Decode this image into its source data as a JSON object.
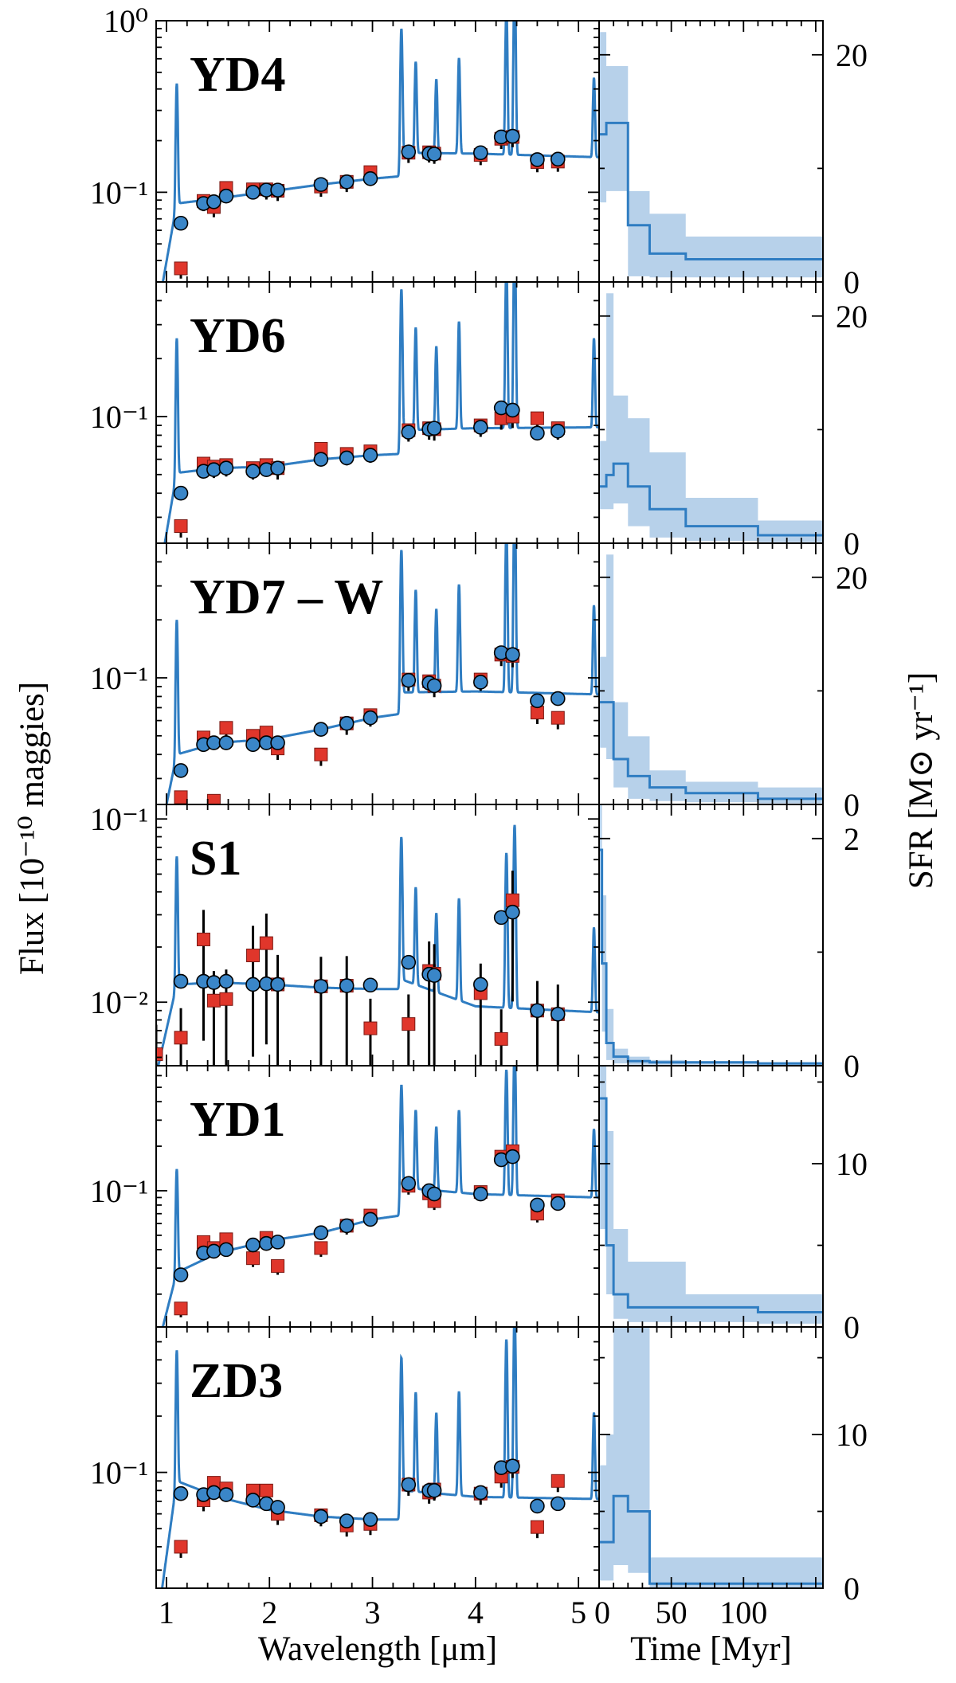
{
  "chart_data": {
    "type": "multi-panel: SED (line + scatter) and SFH (step line + shaded band)",
    "x_label_sed": "Wavelength [μm]",
    "x_label_sfh": "Time [Myr]",
    "y_label_sed": "Flux [10⁻¹⁰ maggies]",
    "y_label_sfh": "SFR [M⊙ yr⁻¹]",
    "sed_x_range": [
      0.9,
      5.2
    ],
    "sed_x_ticks": [
      "1",
      "2",
      "3",
      "4",
      "5"
    ],
    "sed_y_scale": "log",
    "sfh_x_range": [
      0,
      155
    ],
    "sfh_x_ticks": [
      "0",
      "50",
      "100"
    ],
    "colors": {
      "model": "#2f7dc2",
      "band": "#b7d1ea",
      "model_photometry": "#3a86c8",
      "observed": "#e0362b"
    },
    "panels": [
      {
        "name": "YD4",
        "sed_ylim": [
          0.03,
          1.0
        ],
        "sed_ytick_labels": [
          {
            "value": 1.0,
            "label": "10⁰"
          },
          {
            "value": 0.1,
            "label": "10⁻¹"
          }
        ],
        "continuum": [
          [
            0.9,
            0.018
          ],
          [
            1.1,
            0.086
          ],
          [
            1.5,
            0.092
          ],
          [
            2.0,
            0.101
          ],
          [
            2.5,
            0.111
          ],
          [
            3.0,
            0.12
          ],
          [
            3.27,
            0.124
          ],
          [
            3.3,
            0.17
          ],
          [
            4.0,
            0.168
          ],
          [
            5.2,
            0.16
          ]
        ],
        "model_photometry": {
          "x": [
            1.14,
            1.36,
            1.46,
            1.58,
            1.84,
            1.97,
            2.08,
            2.5,
            2.75,
            2.98,
            3.35,
            3.55,
            3.6,
            4.05,
            4.25,
            4.36,
            4.6,
            4.8
          ],
          "y": [
            0.066,
            0.086,
            0.088,
            0.095,
            0.1,
            0.103,
            0.103,
            0.111,
            0.115,
            0.12,
            0.172,
            0.168,
            0.167,
            0.17,
            0.21,
            0.212,
            0.155,
            0.156
          ]
        },
        "observed": {
          "x": [
            1.14,
            1.36,
            1.46,
            1.58,
            1.84,
            1.97,
            2.08,
            2.5,
            2.75,
            2.98,
            3.35,
            3.55,
            3.6,
            4.05,
            4.25,
            4.36,
            4.6,
            4.8
          ],
          "y": [
            0.036,
            0.089,
            0.082,
            0.106,
            0.104,
            0.104,
            0.102,
            0.108,
            0.115,
            0.131,
            0.17,
            0.171,
            0.168,
            0.165,
            0.205,
            0.21,
            0.15,
            0.151
          ]
        },
        "sfh_ylim": [
          0,
          23
        ],
        "sfh_yticks": [
          0,
          20
        ],
        "sfh_edges": [
          0,
          5,
          20,
          35,
          60,
          155
        ],
        "sfh_median": [
          13,
          14,
          5,
          2.5,
          2.0,
          1.0
        ],
        "sfh_low": [
          7,
          8,
          0.5,
          0.4,
          0.4,
          0.2
        ],
        "sfh_high": [
          22,
          19,
          8,
          6,
          4,
          3
        ]
      },
      {
        "name": "YD6",
        "sed_ylim": [
          0.022,
          0.5
        ],
        "sed_ytick_labels": [
          {
            "value": 0.1,
            "label": "10⁻¹"
          }
        ],
        "continuum": [
          [
            0.9,
            0.012
          ],
          [
            1.1,
            0.051
          ],
          [
            1.5,
            0.054
          ],
          [
            2.0,
            0.055
          ],
          [
            2.5,
            0.06
          ],
          [
            3.0,
            0.063
          ],
          [
            3.27,
            0.064
          ],
          [
            3.3,
            0.085
          ],
          [
            4.0,
            0.087
          ],
          [
            5.2,
            0.088
          ]
        ],
        "model_photometry": {
          "x": [
            1.14,
            1.36,
            1.46,
            1.58,
            1.84,
            1.97,
            2.08,
            2.5,
            2.75,
            2.98,
            3.35,
            3.55,
            3.6,
            4.05,
            4.25,
            4.36,
            4.6,
            4.8
          ],
          "y": [
            0.04,
            0.052,
            0.053,
            0.054,
            0.052,
            0.053,
            0.054,
            0.06,
            0.061,
            0.063,
            0.083,
            0.086,
            0.087,
            0.088,
            0.111,
            0.108,
            0.082,
            0.084
          ]
        },
        "observed": {
          "x": [
            1.14,
            1.36,
            1.46,
            1.58,
            1.84,
            1.97,
            2.08,
            2.5,
            2.75,
            2.98,
            3.35,
            3.55,
            3.6,
            4.05,
            4.25,
            4.36,
            4.6,
            4.8
          ],
          "y": [
            0.027,
            0.057,
            0.055,
            0.056,
            0.054,
            0.056,
            0.054,
            0.068,
            0.064,
            0.066,
            0.085,
            0.087,
            0.086,
            0.09,
            0.098,
            0.1,
            0.098,
            0.087
          ]
        },
        "sfh_ylim": [
          0,
          23
        ],
        "sfh_yticks": [
          0,
          20
        ],
        "sfh_edges": [
          0,
          5,
          10,
          20,
          35,
          60,
          110,
          155
        ],
        "sfh_median": [
          5,
          6,
          7,
          5,
          3,
          1.5,
          0.7,
          0.3
        ],
        "sfh_low": [
          3,
          3,
          3.5,
          1.5,
          0.5,
          0.2,
          0.1,
          0.0
        ],
        "sfh_high": [
          9,
          22,
          13,
          11,
          8,
          4,
          2,
          1
        ]
      },
      {
        "name": "YD7 – W",
        "sed_ylim": [
          0.022,
          0.5
        ],
        "sed_ytick_labels": [
          {
            "value": 0.1,
            "label": "10⁻¹"
          }
        ],
        "continuum": [
          [
            0.9,
            0.012
          ],
          [
            1.1,
            0.04
          ],
          [
            1.5,
            0.046
          ],
          [
            2.0,
            0.048
          ],
          [
            2.5,
            0.054
          ],
          [
            3.0,
            0.062
          ],
          [
            3.27,
            0.065
          ],
          [
            3.3,
            0.084
          ],
          [
            4.0,
            0.085
          ],
          [
            5.2,
            0.082
          ]
        ],
        "model_photometry": {
          "x": [
            1.14,
            1.36,
            1.46,
            1.58,
            1.84,
            1.97,
            2.08,
            2.5,
            2.75,
            2.98,
            3.35,
            3.55,
            3.6,
            4.05,
            4.25,
            4.36,
            4.6,
            4.8
          ],
          "y": [
            0.033,
            0.045,
            0.046,
            0.046,
            0.045,
            0.046,
            0.046,
            0.054,
            0.058,
            0.062,
            0.097,
            0.094,
            0.091,
            0.095,
            0.135,
            0.132,
            0.076,
            0.078
          ]
        },
        "observed": {
          "x": [
            1.14,
            1.36,
            1.46,
            1.58,
            1.84,
            1.97,
            2.08,
            2.5,
            2.75,
            2.98,
            3.35,
            3.55,
            3.6,
            4.05,
            4.25,
            4.36,
            4.6,
            4.8
          ],
          "y": [
            0.024,
            0.049,
            0.023,
            0.055,
            0.05,
            0.052,
            0.043,
            0.04,
            0.058,
            0.064,
            0.098,
            0.096,
            0.091,
            0.098,
            0.132,
            0.13,
            0.066,
            0.062
          ]
        },
        "sfh_ylim": [
          0,
          23
        ],
        "sfh_yticks": [
          0,
          20
        ],
        "sfh_edges": [
          0,
          5,
          10,
          20,
          35,
          60,
          110,
          155
        ],
        "sfh_median": [
          9,
          9,
          4,
          2.5,
          1.5,
          1.0,
          0.5,
          0.3
        ],
        "sfh_low": [
          5,
          4,
          1.5,
          0.5,
          0.3,
          0.2,
          0.1,
          0.0
        ],
        "sfh_high": [
          13,
          22,
          9,
          6,
          3,
          2,
          1.5,
          1
        ]
      },
      {
        "name": "S1",
        "sed_ylim": [
          0.0045,
          0.12
        ],
        "sed_ytick_labels": [
          {
            "value": 0.1,
            "label": "10⁻¹"
          },
          {
            "value": 0.01,
            "label": "10⁻²"
          }
        ],
        "continuum": [
          [
            0.9,
            0.004
          ],
          [
            1.1,
            0.0125
          ],
          [
            1.5,
            0.0128
          ],
          [
            2.0,
            0.0125
          ],
          [
            2.5,
            0.012
          ],
          [
            3.0,
            0.0118
          ],
          [
            3.27,
            0.0118
          ],
          [
            3.3,
            0.0132
          ],
          [
            4.0,
            0.0095
          ],
          [
            5.2,
            0.0088
          ]
        ],
        "model_photometry": {
          "x": [
            1.14,
            1.36,
            1.46,
            1.58,
            1.84,
            1.97,
            2.08,
            2.5,
            2.75,
            2.98,
            3.35,
            3.55,
            3.6,
            4.05,
            4.25,
            4.36,
            4.6,
            4.8
          ],
          "y": [
            0.013,
            0.013,
            0.0128,
            0.013,
            0.0125,
            0.0126,
            0.0125,
            0.0122,
            0.0123,
            0.0124,
            0.0165,
            0.0142,
            0.014,
            0.0125,
            0.029,
            0.031,
            0.009,
            0.0086
          ]
        },
        "observed": {
          "x": [
            0.9,
            1.14,
            1.36,
            1.46,
            1.58,
            1.84,
            1.97,
            2.08,
            2.5,
            2.75,
            2.98,
            3.35,
            3.55,
            3.6,
            4.05,
            4.25,
            4.36,
            4.6,
            4.8
          ],
          "y": [
            0.0052,
            0.0064,
            0.022,
            0.0102,
            0.0104,
            0.018,
            0.021,
            0.0125,
            0.0122,
            0.0123,
            0.0072,
            0.0076,
            0.0148,
            0.0143,
            0.0112,
            0.0063,
            0.036,
            0.009,
            0.0086
          ]
        },
        "sfh_ylim": [
          0,
          2.3
        ],
        "sfh_yticks": [
          0,
          2
        ],
        "sfh_edges": [
          0,
          2,
          5,
          10,
          20,
          35,
          60,
          110,
          155
        ],
        "sfh_median": [
          1.9,
          0.9,
          0.2,
          0.08,
          0.04,
          0.03,
          0.03,
          0.02,
          0.02
        ],
        "sfh_low": [
          1.0,
          0.3,
          0.05,
          0.02,
          0.01,
          0.01,
          0.01,
          0.0,
          0.0
        ],
        "sfh_high": [
          2.3,
          1.5,
          0.5,
          0.15,
          0.08,
          0.05,
          0.04,
          0.03,
          0.03
        ]
      },
      {
        "name": "YD1",
        "sed_ylim": [
          0.012,
          0.7
        ],
        "sed_ytick_labels": [
          {
            "value": 0.1,
            "label": "10⁻¹"
          }
        ],
        "continuum": [
          [
            0.9,
            0.008
          ],
          [
            1.1,
            0.028
          ],
          [
            1.5,
            0.038
          ],
          [
            2.0,
            0.046
          ],
          [
            2.5,
            0.052
          ],
          [
            3.0,
            0.064
          ],
          [
            3.27,
            0.068
          ],
          [
            3.3,
            0.105
          ],
          [
            4.0,
            0.095
          ],
          [
            5.2,
            0.09
          ]
        ],
        "model_photometry": {
          "x": [
            1.14,
            1.36,
            1.46,
            1.58,
            1.84,
            1.97,
            2.08,
            2.5,
            2.75,
            2.98,
            3.35,
            3.55,
            3.6,
            4.05,
            4.25,
            4.36,
            4.6,
            4.8
          ],
          "y": [
            0.027,
            0.038,
            0.039,
            0.04,
            0.043,
            0.044,
            0.045,
            0.052,
            0.058,
            0.064,
            0.112,
            0.1,
            0.095,
            0.095,
            0.162,
            0.17,
            0.08,
            0.082
          ]
        },
        "observed": {
          "x": [
            1.14,
            1.36,
            1.46,
            1.58,
            1.84,
            1.97,
            2.08,
            2.5,
            2.75,
            2.98,
            3.35,
            3.55,
            3.6,
            4.05,
            4.25,
            4.36,
            4.6,
            4.8
          ],
          "y": [
            0.016,
            0.045,
            0.041,
            0.047,
            0.035,
            0.048,
            0.031,
            0.041,
            0.058,
            0.068,
            0.108,
            0.096,
            0.085,
            0.098,
            0.17,
            0.185,
            0.07,
            0.086
          ]
        },
        "sfh_ylim": [
          0,
          16
        ],
        "sfh_yticks": [
          0,
          10
        ],
        "sfh_edges": [
          0,
          5,
          10,
          20,
          35,
          60,
          110,
          155
        ],
        "sfh_median": [
          14,
          5,
          2,
          1.2,
          1.2,
          1.2,
          0.9,
          0.8
        ],
        "sfh_low": [
          6,
          2,
          0.5,
          0.3,
          0.3,
          0.3,
          0.2,
          0.2
        ],
        "sfh_high": [
          16,
          12,
          6,
          4,
          4,
          2,
          2,
          2
        ]
      },
      {
        "name": "ZD3",
        "sed_ylim": [
          0.024,
          0.6
        ],
        "sed_ytick_labels": [
          {
            "value": 0.1,
            "label": "10⁻¹"
          }
        ],
        "continuum": [
          [
            0.9,
            0.014
          ],
          [
            1.1,
            0.09
          ],
          [
            1.5,
            0.074
          ],
          [
            2.0,
            0.063
          ],
          [
            2.5,
            0.058
          ],
          [
            3.0,
            0.056
          ],
          [
            3.27,
            0.056
          ],
          [
            3.3,
            0.08
          ],
          [
            4.0,
            0.074
          ],
          [
            5.2,
            0.072
          ]
        ],
        "model_photometry": {
          "x": [
            1.14,
            1.36,
            1.46,
            1.58,
            1.84,
            1.97,
            2.08,
            2.5,
            2.75,
            2.98,
            3.35,
            3.55,
            3.6,
            4.05,
            4.25,
            4.36,
            4.6,
            4.8
          ],
          "y": [
            0.077,
            0.076,
            0.078,
            0.076,
            0.071,
            0.068,
            0.065,
            0.058,
            0.055,
            0.056,
            0.086,
            0.08,
            0.08,
            0.078,
            0.106,
            0.108,
            0.066,
            0.068
          ]
        },
        "observed": {
          "x": [
            1.14,
            1.36,
            1.46,
            1.58,
            1.84,
            1.97,
            2.08,
            2.5,
            2.75,
            2.98,
            3.35,
            3.55,
            3.6,
            4.05,
            4.25,
            4.36,
            4.6,
            4.8
          ],
          "y": [
            0.04,
            0.071,
            0.088,
            0.082,
            0.08,
            0.08,
            0.06,
            0.059,
            0.052,
            0.053,
            0.086,
            0.078,
            0.081,
            0.077,
            0.095,
            0.107,
            0.051,
            0.09
          ]
        },
        "sfh_ylim": [
          0,
          17
        ],
        "sfh_yticks": [
          0,
          10
        ],
        "sfh_edges": [
          0,
          5,
          10,
          20,
          35,
          155
        ],
        "sfh_median": [
          3,
          3,
          6,
          5,
          0.3,
          0.3
        ],
        "sfh_low": [
          0.5,
          0.5,
          1.5,
          1.0,
          0.05,
          0.05
        ],
        "sfh_high": [
          8,
          10,
          17,
          17,
          2,
          1
        ]
      }
    ]
  }
}
